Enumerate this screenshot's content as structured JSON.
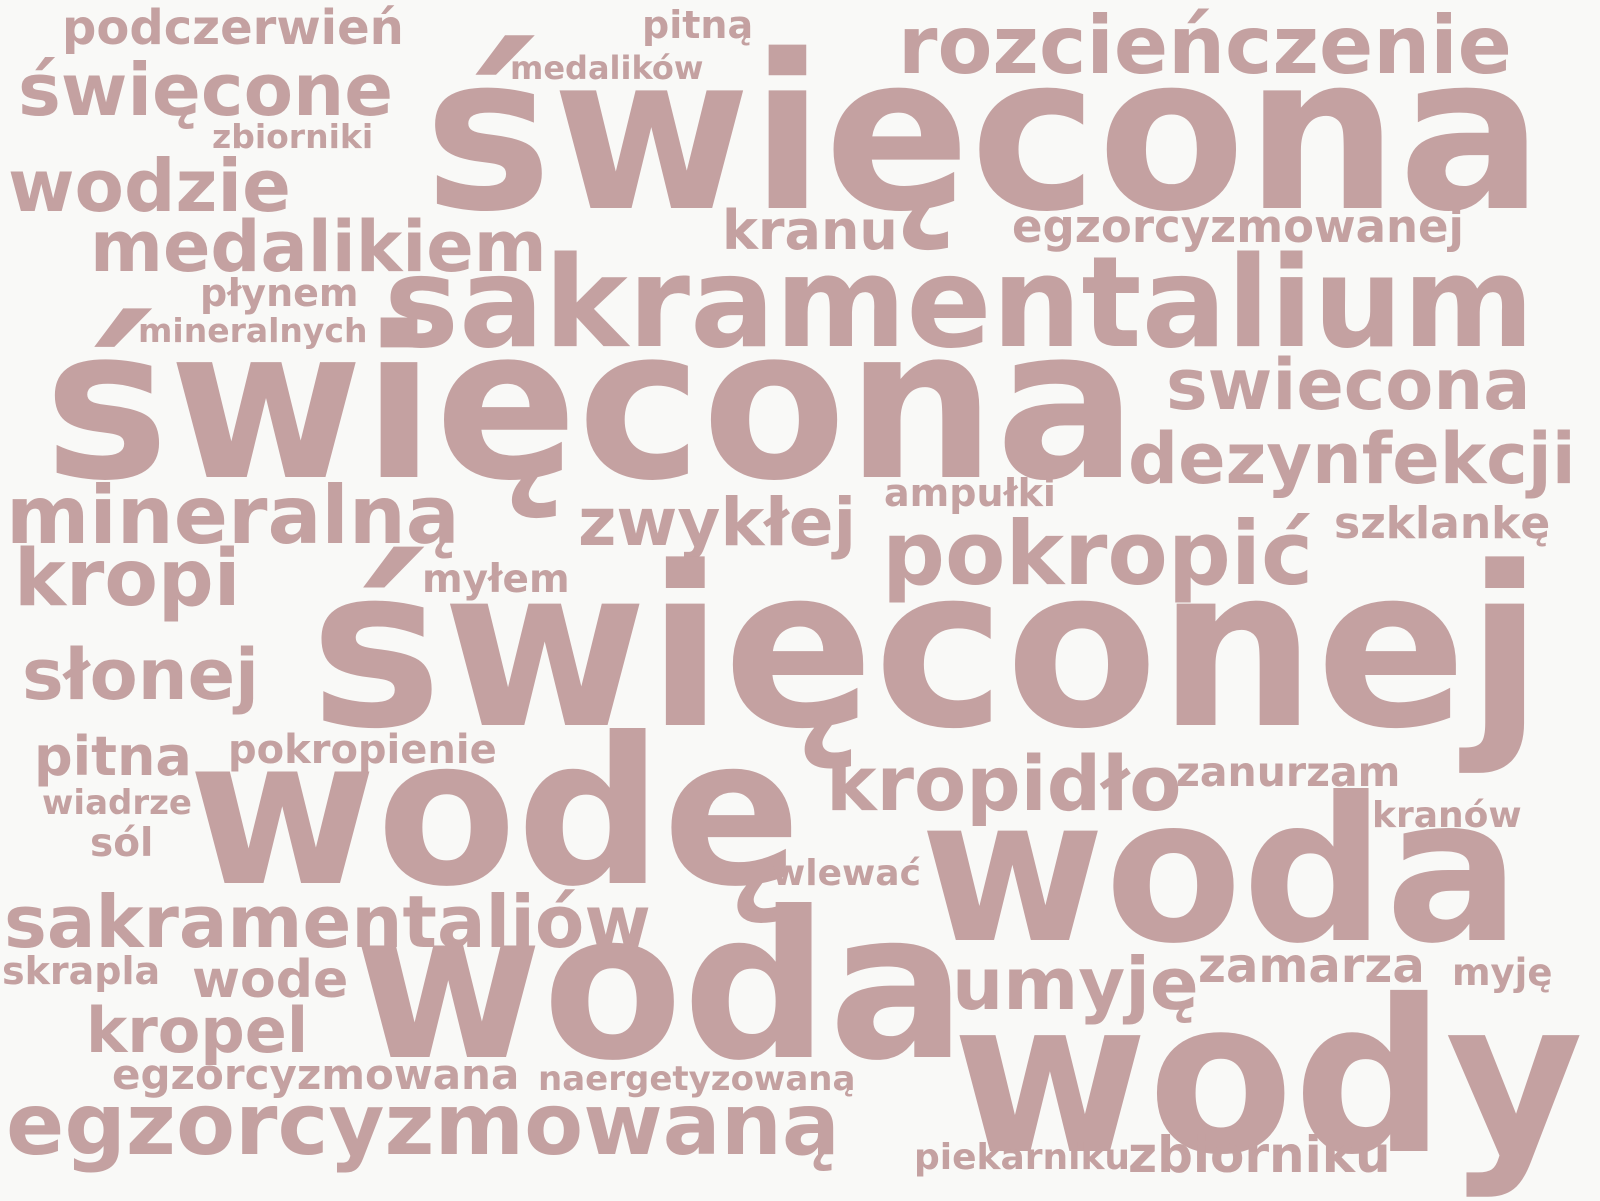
{
  "word_color": "#c4a1a1",
  "background_color": "#f9f9f7",
  "words": [
    "podczerwień",
    "pitną",
    "święcone",
    "medalików",
    "rozcieńczenie",
    "święcona",
    "zbiorniki",
    "wodzie",
    "kranu",
    "egzorcyzmowanej",
    "medalikiem",
    "płynem",
    "sakramentalium",
    "mineralnych",
    "święcona",
    "swiecona",
    "dezynfekcji",
    "ampułki",
    "mineralną",
    "zwykłej",
    "pokropić",
    "szklankę",
    "kropi",
    "myłem",
    "święconej",
    "słonej",
    "pitna",
    "pokropienie",
    "wodę",
    "kropidło",
    "zanurzam",
    "wiadrze",
    "kranów",
    "sól",
    "woda",
    "wlewać",
    "sakramentaliów",
    "skrapla",
    "wode",
    "woda",
    "umyję",
    "zamarza",
    "myję",
    "kropel",
    "wody",
    "egzorcyzmowana",
    "naergetyzowaną",
    "egzorcyzmowaną",
    "piekarniku",
    "zbiorniku"
  ]
}
